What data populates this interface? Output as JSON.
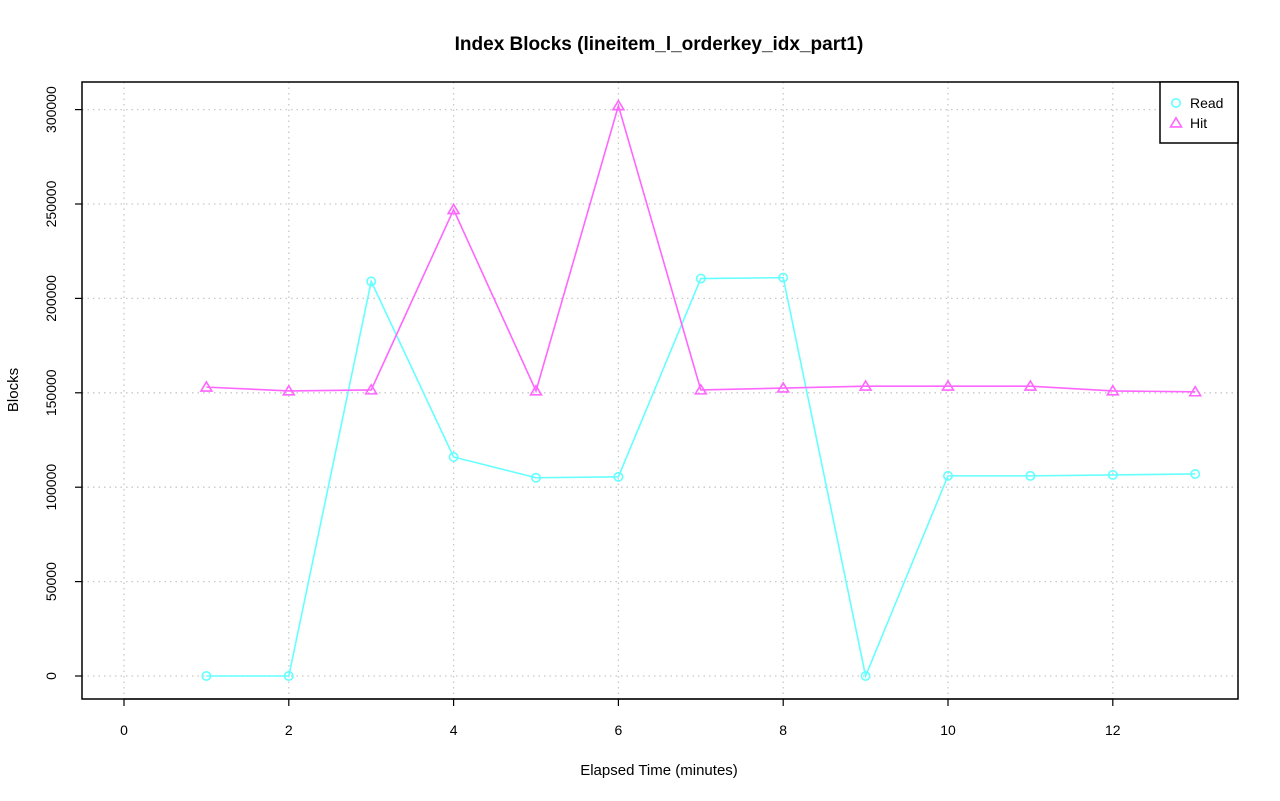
{
  "chart_data": {
    "type": "line",
    "title": "Index Blocks (lineitem_l_orderkey_idx_part1)",
    "xlabel": "Elapsed Time (minutes)",
    "ylabel": "Blocks",
    "xlim": [
      0,
      13
    ],
    "ylim": [
      0,
      300000
    ],
    "xticks": [
      0,
      2,
      4,
      6,
      8,
      10,
      12
    ],
    "yticks": [
      0,
      50000,
      100000,
      150000,
      200000,
      250000,
      300000
    ],
    "grid": true,
    "legend_position": "top-right",
    "x": [
      1,
      2,
      3,
      4,
      5,
      6,
      7,
      8,
      9,
      10,
      11,
      12,
      13
    ],
    "series": [
      {
        "name": "Read",
        "color": "#66ffff",
        "marker": "circle",
        "values": [
          0,
          0,
          209000,
          116000,
          105000,
          105500,
          210500,
          211000,
          0,
          106000,
          106000,
          106500,
          107000
        ]
      },
      {
        "name": "Hit",
        "color": "#ff66ff",
        "marker": "triangle",
        "values": [
          153000,
          151000,
          151500,
          247000,
          151000,
          302000,
          151500,
          152500,
          153500,
          153500,
          153500,
          151000,
          150500
        ]
      }
    ]
  }
}
